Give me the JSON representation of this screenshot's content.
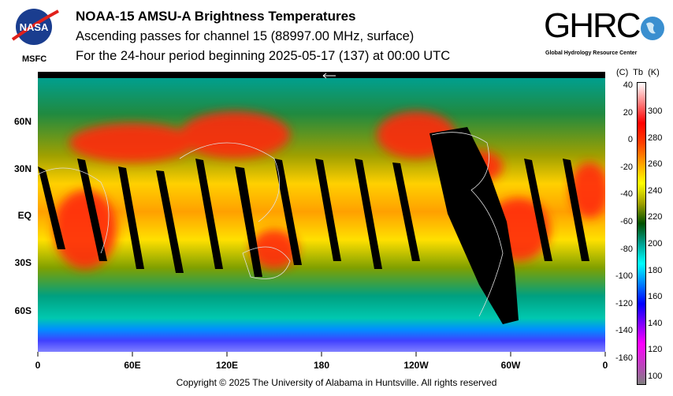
{
  "header": {
    "title": "NOAA-15 AMSU-A Brightness Temperatures",
    "subtitle": "Ascending passes for channel 15 (88997.00 MHz, surface)",
    "period": "For the 24-hour period beginning 2025-05-17 (137) at 00:00 UTC"
  },
  "logos": {
    "nasa": "NASA",
    "nasa_center": "MSFC",
    "ghrc": "GHRC",
    "ghrc_name": "Global Hydrology Resource Center"
  },
  "map": {
    "lat_labels": [
      "60N",
      "30N",
      "EQ",
      "30S",
      "60S"
    ],
    "lon_labels": [
      "0",
      "60E",
      "120E",
      "180",
      "120W",
      "60W",
      "0"
    ]
  },
  "colorbar": {
    "header": "(C)  Tb  (K)",
    "celsius": [
      "40",
      "20",
      "0",
      "-20",
      "-40",
      "-60",
      "-80",
      "-100",
      "-120",
      "-140",
      "-160"
    ],
    "kelvin": [
      "300",
      "280",
      "260",
      "240",
      "220",
      "200",
      "180",
      "160",
      "140",
      "120",
      "100"
    ],
    "colors": [
      "#808080",
      "#c040c0",
      "#ff00ff",
      "#8000ff",
      "#0000ff",
      "#0080ff",
      "#00ffff",
      "#00a090",
      "#005000",
      "#a0a000",
      "#ffff00",
      "#ffa000",
      "#ff4000",
      "#ff0000",
      "#ff8080",
      "#ffffff"
    ]
  },
  "footer": {
    "copyright": "Copyright © 2025 The University of Alabama in Huntsville.  All rights reserved"
  }
}
